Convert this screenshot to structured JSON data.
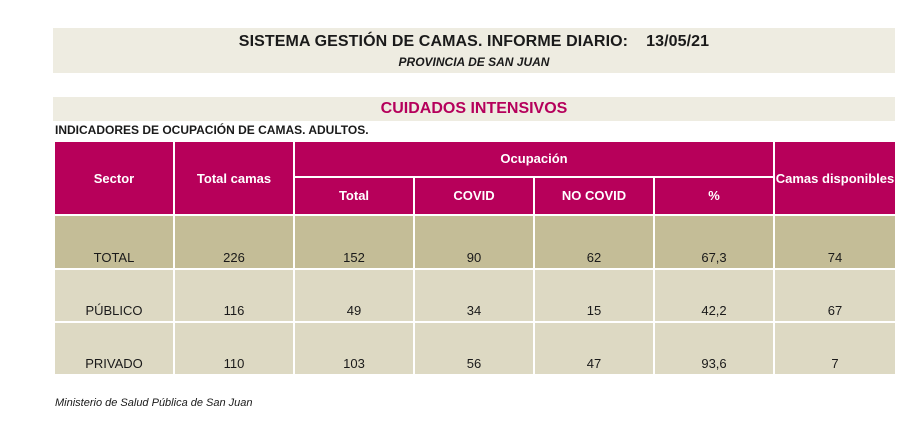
{
  "header": {
    "title": "SISTEMA GESTIÓN DE CAMAS. INFORME DIARIO:",
    "date": "13/05/21",
    "subtitle": "PROVINCIA DE SAN JUAN"
  },
  "section": {
    "title": "CUIDADOS INTENSIVOS",
    "indicators": "INDICADORES DE OCUPACIÓN DE CAMAS. ADULTOS."
  },
  "table": {
    "headers": {
      "sector": "Sector",
      "total_camas": "Total camas",
      "ocupacion": "Ocupación",
      "camas_disponibles": "Camas disponibles",
      "sub": [
        "Total",
        "COVID",
        "NO COVID",
        "%"
      ]
    },
    "rows": [
      {
        "sector": "TOTAL",
        "total_camas": "226",
        "total": "152",
        "covid": "90",
        "no_covid": "62",
        "pct": "67,3",
        "disponibles": "74"
      },
      {
        "sector": "PÚBLICO",
        "total_camas": "116",
        "total": "49",
        "covid": "34",
        "no_covid": "15",
        "pct": "42,2",
        "disponibles": "67"
      },
      {
        "sector": "PRIVADO",
        "total_camas": "110",
        "total": "103",
        "covid": "56",
        "no_covid": "47",
        "pct": "93,6",
        "disponibles": "7"
      }
    ]
  },
  "footer": "Ministerio de Salud Pública de San Juan",
  "colors": {
    "header_bg": "#b7005a",
    "section_title": "#b5005b",
    "band_bg": "#eeece1",
    "total_row": "#c4bd97",
    "data_row": "#ddd9c3"
  }
}
